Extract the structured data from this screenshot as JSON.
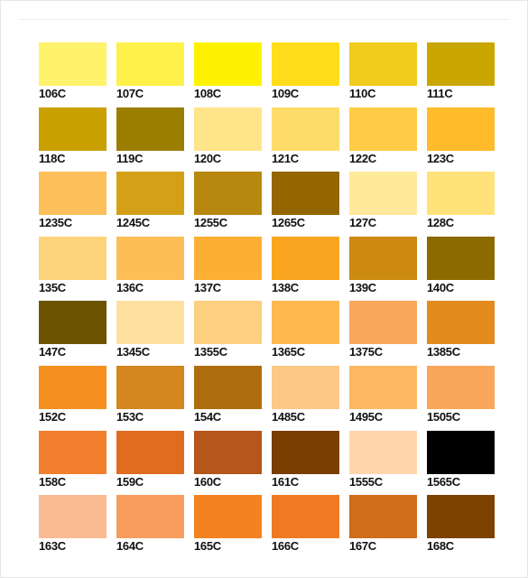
{
  "swatches": [
    {
      "label": "106C",
      "color": "#fff36b"
    },
    {
      "label": "107C",
      "color": "#fff04a"
    },
    {
      "label": "108C",
      "color": "#fff200"
    },
    {
      "label": "109C",
      "color": "#ffdd1a"
    },
    {
      "label": "110C",
      "color": "#f2cc1d"
    },
    {
      "label": "111C",
      "color": "#c9a700"
    },
    {
      "label": "118C",
      "color": "#c9a000"
    },
    {
      "label": "119C",
      "color": "#9b7d00"
    },
    {
      "label": "120C",
      "color": "#ffe48a"
    },
    {
      "label": "121C",
      "color": "#ffdc6a"
    },
    {
      "label": "122C",
      "color": "#ffcd45"
    },
    {
      "label": "123C",
      "color": "#ffbb2a"
    },
    {
      "label": "1235C",
      "color": "#fdbf5a"
    },
    {
      "label": "1245C",
      "color": "#d4a017"
    },
    {
      "label": "1255C",
      "color": "#b8870d"
    },
    {
      "label": "1265C",
      "color": "#946600"
    },
    {
      "label": "127C",
      "color": "#ffe99a"
    },
    {
      "label": "128C",
      "color": "#ffe27a"
    },
    {
      "label": "135C",
      "color": "#fdd47c"
    },
    {
      "label": "136C",
      "color": "#fdbe55"
    },
    {
      "label": "137C",
      "color": "#fdaf33"
    },
    {
      "label": "138C",
      "color": "#f9a51f"
    },
    {
      "label": "139C",
      "color": "#cc8a12"
    },
    {
      "label": "140C",
      "color": "#8c6a00"
    },
    {
      "label": "147C",
      "color": "#6b5300"
    },
    {
      "label": "1345C",
      "color": "#ffe0a0"
    },
    {
      "label": "1355C",
      "color": "#fdd080"
    },
    {
      "label": "1365C",
      "color": "#fdb850"
    },
    {
      "label": "1375C",
      "color": "#f9a85a"
    },
    {
      "label": "1385C",
      "color": "#e38b1c"
    },
    {
      "label": "152C",
      "color": "#f59020"
    },
    {
      "label": "153C",
      "color": "#d4861f"
    },
    {
      "label": "154C",
      "color": "#b06d10"
    },
    {
      "label": "1485C",
      "color": "#fdc885"
    },
    {
      "label": "1495C",
      "color": "#fdb763"
    },
    {
      "label": "1505C",
      "color": "#f9a55a"
    },
    {
      "label": "158C",
      "color": "#f27f2e"
    },
    {
      "label": "159C",
      "color": "#e06c22"
    },
    {
      "label": "160C",
      "color": "#b5561b"
    },
    {
      "label": "161C",
      "color": "#7a3e00"
    },
    {
      "label": "1555C",
      "color": "#ffd5ab"
    },
    {
      "label": "1565C",
      "color": "#000000"
    },
    {
      "label": "163C",
      "color": "#fbbb92"
    },
    {
      "label": "164C",
      "color": "#f99d5e"
    },
    {
      "label": "165C",
      "color": "#f58220"
    },
    {
      "label": "166C",
      "color": "#f07a24"
    },
    {
      "label": "167C",
      "color": "#cf6d1c"
    },
    {
      "label": "168C",
      "color": "#7d4200"
    }
  ]
}
